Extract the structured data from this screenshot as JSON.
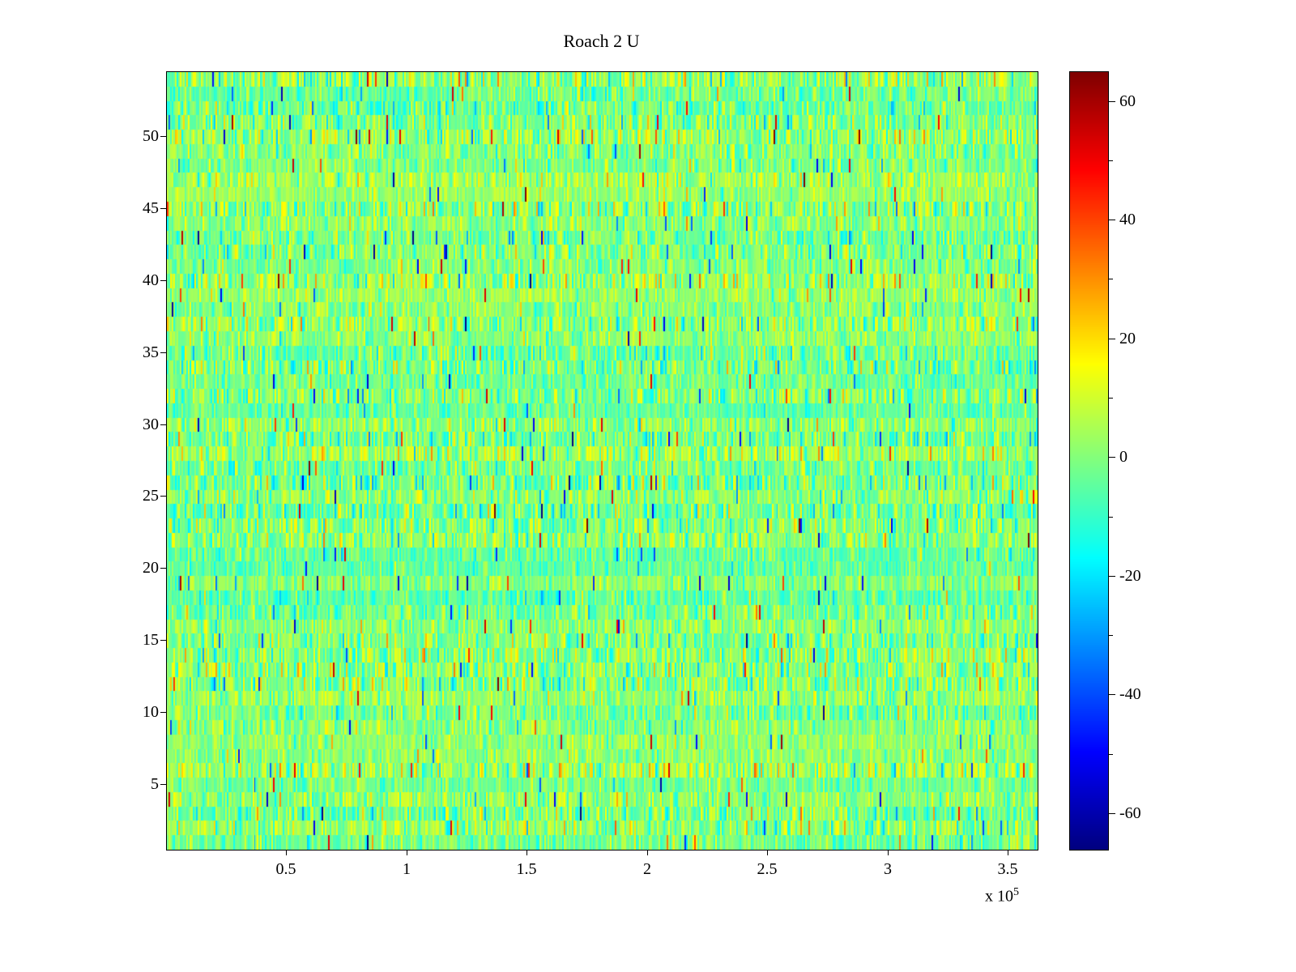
{
  "chart_data": {
    "type": "heatmap",
    "title": "Roach 2 U",
    "xlabel": "",
    "ylabel": "",
    "xlim": [
      0,
      362000
    ],
    "ylim": [
      0.5,
      54.5
    ],
    "x_ticks": [
      {
        "value": 50000,
        "label": "0.5"
      },
      {
        "value": 100000,
        "label": "1"
      },
      {
        "value": 150000,
        "label": "1.5"
      },
      {
        "value": 200000,
        "label": "2"
      },
      {
        "value": 250000,
        "label": "2.5"
      },
      {
        "value": 300000,
        "label": "3"
      },
      {
        "value": 350000,
        "label": "3.5"
      }
    ],
    "x_exponent": {
      "prefix": "x 10",
      "exp": "5"
    },
    "y_ticks": [
      {
        "value": 5,
        "label": "5"
      },
      {
        "value": 10,
        "label": "10"
      },
      {
        "value": 15,
        "label": "15"
      },
      {
        "value": 20,
        "label": "20"
      },
      {
        "value": 25,
        "label": "25"
      },
      {
        "value": 30,
        "label": "30"
      },
      {
        "value": 35,
        "label": "35"
      },
      {
        "value": 40,
        "label": "40"
      },
      {
        "value": 45,
        "label": "45"
      },
      {
        "value": 50,
        "label": "50"
      }
    ],
    "colormap": "jet",
    "clim": [
      -66,
      65
    ],
    "colorbar": {
      "position": "right",
      "ticks": [
        {
          "value": 60,
          "label": "60"
        },
        {
          "value": 40,
          "label": "40"
        },
        {
          "value": 20,
          "label": "20"
        },
        {
          "value": 0,
          "label": "0"
        },
        {
          "value": -20,
          "label": "-20"
        },
        {
          "value": -40,
          "label": "-40"
        },
        {
          "value": -60,
          "label": "-60"
        }
      ],
      "minor_ticks": [
        50,
        30,
        10,
        -10,
        -30,
        -50
      ]
    },
    "grid": {
      "rows": 54,
      "cols": 540
    },
    "noise": {
      "description": "random noise field, values concentrated near 0 (green) with sparse cyan/yellow/orange/blue outliers",
      "seed": 1337,
      "mean": 0,
      "std": 7.5,
      "row_mean_std": 2.5,
      "spike_prob": 0.018,
      "spike_extra": 45
    },
    "legend": null,
    "grid_lines": false
  },
  "colors": {
    "background": "#ffffff",
    "axis": "#000000",
    "text": "#000000"
  }
}
